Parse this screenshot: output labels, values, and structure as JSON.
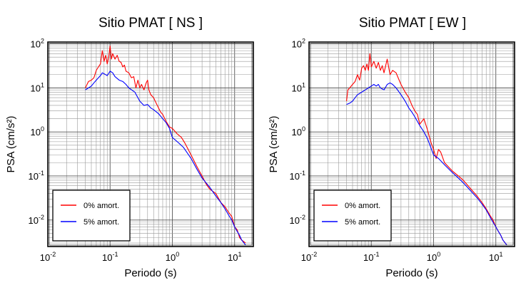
{
  "chart_data": [
    {
      "type": "line",
      "title": "Sitio PMAT [ NS ]",
      "xlabel": "Periodo (s)",
      "ylabel": "PSA (cm/s²)",
      "xscale": "log",
      "yscale": "log",
      "xlim": [
        0.01,
        20
      ],
      "ylim": [
        0.0025,
        110
      ],
      "grid": true,
      "legend_position": "bottom-left",
      "xticks": [
        {
          "value": 0.01,
          "base": "10",
          "exp": "-2"
        },
        {
          "value": 0.1,
          "base": "10",
          "exp": "-1"
        },
        {
          "value": 1,
          "base": "10",
          "exp": "0"
        },
        {
          "value": 10,
          "base": "10",
          "exp": "1"
        }
      ],
      "yticks": [
        {
          "value": 0.01,
          "base": "10",
          "exp": "-2"
        },
        {
          "value": 0.1,
          "base": "10",
          "exp": "-1"
        },
        {
          "value": 1,
          "base": "10",
          "exp": "0"
        },
        {
          "value": 10,
          "base": "10",
          "exp": "1"
        },
        {
          "value": 100,
          "base": "10",
          "exp": "2"
        }
      ],
      "series": [
        {
          "name": "0% amort.",
          "color": "#ff0000",
          "points": [
            [
              0.04,
              10
            ],
            [
              0.045,
              14
            ],
            [
              0.05,
              15
            ],
            [
              0.055,
              17
            ],
            [
              0.06,
              25
            ],
            [
              0.065,
              30
            ],
            [
              0.07,
              35
            ],
            [
              0.075,
              70
            ],
            [
              0.08,
              40
            ],
            [
              0.085,
              55
            ],
            [
              0.09,
              35
            ],
            [
              0.095,
              50
            ],
            [
              0.1,
              90
            ],
            [
              0.105,
              45
            ],
            [
              0.11,
              60
            ],
            [
              0.12,
              45
            ],
            [
              0.13,
              55
            ],
            [
              0.14,
              40
            ],
            [
              0.15,
              38
            ],
            [
              0.16,
              30
            ],
            [
              0.17,
              33
            ],
            [
              0.18,
              24
            ],
            [
              0.2,
              22
            ],
            [
              0.22,
              17
            ],
            [
              0.24,
              18
            ],
            [
              0.26,
              10
            ],
            [
              0.28,
              15
            ],
            [
              0.3,
              10
            ],
            [
              0.32,
              12
            ],
            [
              0.35,
              9
            ],
            [
              0.38,
              13
            ],
            [
              0.4,
              15
            ],
            [
              0.42,
              9
            ],
            [
              0.45,
              7
            ],
            [
              0.5,
              6
            ],
            [
              0.55,
              4.5
            ],
            [
              0.6,
              3.5
            ],
            [
              0.65,
              2.8
            ],
            [
              0.7,
              2.5
            ],
            [
              0.8,
              1.7
            ],
            [
              0.9,
              1.3
            ],
            [
              1.0,
              1.2
            ],
            [
              1.2,
              0.9
            ],
            [
              1.4,
              0.75
            ],
            [
              1.6,
              0.55
            ],
            [
              2.0,
              0.3
            ],
            [
              2.5,
              0.16
            ],
            [
              3.0,
              0.1
            ],
            [
              3.5,
              0.065
            ],
            [
              4.0,
              0.05
            ],
            [
              5.0,
              0.04
            ],
            [
              6.0,
              0.025
            ],
            [
              7.0,
              0.02
            ],
            [
              8.0,
              0.015
            ],
            [
              9.0,
              0.012
            ],
            [
              10.0,
              0.007
            ],
            [
              11.0,
              0.006
            ],
            [
              12.0,
              0.004
            ],
            [
              13.0,
              0.0035
            ],
            [
              15.0,
              0.003
            ]
          ]
        },
        {
          "name": "5% amort.",
          "color": "#0000ff",
          "points": [
            [
              0.04,
              9
            ],
            [
              0.045,
              10
            ],
            [
              0.05,
              11
            ],
            [
              0.055,
              13
            ],
            [
              0.06,
              15
            ],
            [
              0.065,
              17
            ],
            [
              0.07,
              19
            ],
            [
              0.075,
              22
            ],
            [
              0.08,
              21
            ],
            [
              0.09,
              19
            ],
            [
              0.1,
              24
            ],
            [
              0.11,
              22
            ],
            [
              0.12,
              18
            ],
            [
              0.14,
              15
            ],
            [
              0.16,
              14
            ],
            [
              0.18,
              12
            ],
            [
              0.2,
              10
            ],
            [
              0.25,
              8
            ],
            [
              0.3,
              5
            ],
            [
              0.35,
              4
            ],
            [
              0.4,
              4.2
            ],
            [
              0.45,
              3.5
            ],
            [
              0.5,
              3.2
            ],
            [
              0.6,
              2.6
            ],
            [
              0.7,
              2.0
            ],
            [
              0.8,
              1.6
            ],
            [
              0.9,
              1.2
            ],
            [
              1.0,
              0.75
            ],
            [
              1.2,
              0.6
            ],
            [
              1.5,
              0.45
            ],
            [
              2.0,
              0.25
            ],
            [
              2.5,
              0.14
            ],
            [
              3.0,
              0.09
            ],
            [
              4.0,
              0.055
            ],
            [
              5.0,
              0.035
            ],
            [
              6.0,
              0.025
            ],
            [
              7.0,
              0.018
            ],
            [
              8.0,
              0.013
            ],
            [
              9.0,
              0.01
            ],
            [
              10.0,
              0.007
            ],
            [
              11.0,
              0.0055
            ],
            [
              12.0,
              0.0045
            ],
            [
              13.0,
              0.0035
            ],
            [
              15.0,
              0.0027
            ]
          ]
        }
      ]
    },
    {
      "type": "line",
      "title": "Sitio PMAT [ EW ]",
      "xlabel": "Periodo (s)",
      "ylabel": "PSA (cm/s²)",
      "xscale": "log",
      "yscale": "log",
      "xlim": [
        0.01,
        20
      ],
      "ylim": [
        0.0025,
        110
      ],
      "grid": true,
      "legend_position": "bottom-left",
      "xticks": [
        {
          "value": 0.01,
          "base": "10",
          "exp": "-2"
        },
        {
          "value": 0.1,
          "base": "10",
          "exp": "-1"
        },
        {
          "value": 1,
          "base": "10",
          "exp": "0"
        },
        {
          "value": 10,
          "base": "10",
          "exp": "1"
        }
      ],
      "yticks": [
        {
          "value": 0.01,
          "base": "10",
          "exp": "-2"
        },
        {
          "value": 0.1,
          "base": "10",
          "exp": "-1"
        },
        {
          "value": 1,
          "base": "10",
          "exp": "0"
        },
        {
          "value": 10,
          "base": "10",
          "exp": "1"
        },
        {
          "value": 100,
          "base": "10",
          "exp": "2"
        }
      ],
      "series": [
        {
          "name": "0% amort.",
          "color": "#ff0000",
          "points": [
            [
              0.04,
              5
            ],
            [
              0.042,
              9
            ],
            [
              0.045,
              10
            ],
            [
              0.05,
              12
            ],
            [
              0.055,
              14
            ],
            [
              0.06,
              20
            ],
            [
              0.065,
              15
            ],
            [
              0.07,
              28
            ],
            [
              0.075,
              32
            ],
            [
              0.08,
              25
            ],
            [
              0.085,
              35
            ],
            [
              0.09,
              25
            ],
            [
              0.095,
              60
            ],
            [
              0.1,
              30
            ],
            [
              0.11,
              40
            ],
            [
              0.12,
              28
            ],
            [
              0.13,
              38
            ],
            [
              0.14,
              25
            ],
            [
              0.15,
              32
            ],
            [
              0.16,
              22
            ],
            [
              0.18,
              45
            ],
            [
              0.2,
              20
            ],
            [
              0.22,
              25
            ],
            [
              0.25,
              22
            ],
            [
              0.28,
              15
            ],
            [
              0.3,
              12
            ],
            [
              0.35,
              8
            ],
            [
              0.4,
              6
            ],
            [
              0.45,
              4
            ],
            [
              0.5,
              3
            ],
            [
              0.55,
              2.5
            ],
            [
              0.6,
              1.5
            ],
            [
              0.7,
              2.0
            ],
            [
              0.8,
              1.1
            ],
            [
              0.9,
              0.6
            ],
            [
              1.0,
              0.4
            ],
            [
              1.1,
              0.25
            ],
            [
              1.2,
              0.4
            ],
            [
              1.3,
              0.35
            ],
            [
              1.5,
              0.2
            ],
            [
              2.0,
              0.13
            ],
            [
              2.5,
              0.1
            ],
            [
              3.0,
              0.08
            ],
            [
              4.0,
              0.05
            ],
            [
              5.0,
              0.035
            ],
            [
              6.0,
              0.025
            ],
            [
              7.0,
              0.018
            ],
            [
              8.0,
              0.013
            ],
            [
              9.0,
              0.01
            ],
            [
              10.0,
              0.007
            ],
            [
              11.0,
              0.0055
            ],
            [
              12.0,
              0.0045
            ],
            [
              13.0,
              0.0035
            ],
            [
              15.0,
              0.0027
            ]
          ]
        },
        {
          "name": "5% amort.",
          "color": "#0000ff",
          "points": [
            [
              0.04,
              4.2
            ],
            [
              0.045,
              4.5
            ],
            [
              0.05,
              5
            ],
            [
              0.055,
              6
            ],
            [
              0.06,
              7
            ],
            [
              0.07,
              8
            ],
            [
              0.08,
              9
            ],
            [
              0.09,
              10
            ],
            [
              0.1,
              11
            ],
            [
              0.11,
              12
            ],
            [
              0.12,
              11
            ],
            [
              0.13,
              12
            ],
            [
              0.14,
              10
            ],
            [
              0.16,
              9
            ],
            [
              0.18,
              12
            ],
            [
              0.2,
              13
            ],
            [
              0.22,
              12
            ],
            [
              0.25,
              10
            ],
            [
              0.3,
              7
            ],
            [
              0.35,
              5
            ],
            [
              0.4,
              3.5
            ],
            [
              0.45,
              2.8
            ],
            [
              0.5,
              2.2
            ],
            [
              0.6,
              1.4
            ],
            [
              0.7,
              1.0
            ],
            [
              0.8,
              0.7
            ],
            [
              0.9,
              0.45
            ],
            [
              1.0,
              0.3
            ],
            [
              1.2,
              0.25
            ],
            [
              1.5,
              0.18
            ],
            [
              2.0,
              0.12
            ],
            [
              2.5,
              0.09
            ],
            [
              3.0,
              0.07
            ],
            [
              4.0,
              0.045
            ],
            [
              5.0,
              0.032
            ],
            [
              6.0,
              0.023
            ],
            [
              7.0,
              0.017
            ],
            [
              8.0,
              0.012
            ],
            [
              9.0,
              0.009
            ],
            [
              10.0,
              0.007
            ],
            [
              11.0,
              0.0055
            ],
            [
              12.0,
              0.0045
            ],
            [
              13.0,
              0.0035
            ],
            [
              15.0,
              0.0027
            ]
          ]
        }
      ]
    }
  ]
}
